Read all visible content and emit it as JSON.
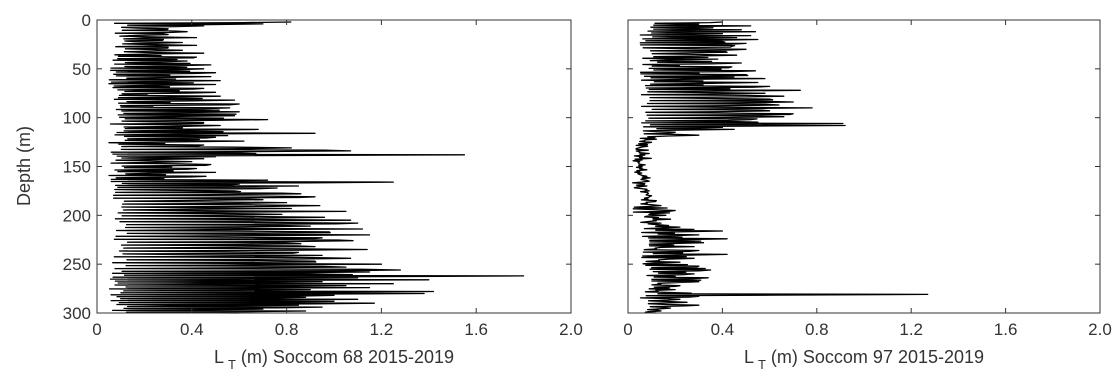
{
  "chart_data": [
    {
      "type": "line",
      "title": "",
      "xlabel_main": "L",
      "xlabel_sub": "T",
      "xlabel_rest": " (m) Soccom 68 2015-2019",
      "ylabel": "Depth (m)",
      "xlim": [
        0,
        2.0
      ],
      "ylim": [
        0,
        300
      ],
      "y_reversed": true,
      "grid": false,
      "xticks": [
        "0",
        "0.4",
        "0.8",
        "1.2",
        "1.6",
        "2.0"
      ],
      "yticks": [
        "0",
        "50",
        "100",
        "150",
        "200",
        "250",
        "300"
      ],
      "color": "#000000",
      "series": [
        {
          "depth": [
            2,
            4,
            6,
            9,
            12,
            15,
            18,
            20,
            23,
            26,
            28,
            31,
            34,
            38,
            42,
            46,
            50,
            54,
            58,
            62,
            66,
            70,
            74,
            78,
            82,
            86,
            90,
            94,
            98,
            102,
            105,
            108,
            112,
            116,
            120,
            124,
            128,
            131,
            134,
            136,
            138,
            140,
            142,
            145,
            148,
            152,
            156,
            160,
            164,
            166,
            168,
            170,
            172,
            175,
            178,
            181,
            184,
            187,
            190,
            193,
            196,
            199,
            202,
            205,
            208,
            211,
            214,
            217,
            220,
            223,
            226,
            229,
            232,
            235,
            238,
            241,
            244,
            247,
            250,
            253,
            256,
            258,
            260,
            262,
            264,
            266,
            268,
            270,
            272,
            274,
            276,
            278,
            280,
            282,
            284,
            286,
            288,
            290,
            292,
            294,
            296,
            298,
            300
          ],
          "values": [
            0.82,
            0.7,
            0.45,
            0.3,
            0.38,
            0.3,
            0.42,
            0.28,
            0.36,
            0.42,
            0.3,
            0.36,
            0.45,
            0.42,
            0.38,
            0.48,
            0.45,
            0.5,
            0.48,
            0.52,
            0.5,
            0.45,
            0.5,
            0.52,
            0.58,
            0.6,
            0.56,
            0.6,
            0.58,
            0.72,
            0.45,
            0.52,
            0.68,
            0.92,
            0.5,
            0.62,
            0.45,
            0.82,
            1.07,
            0.58,
            1.55,
            0.5,
            0.45,
            0.4,
            0.48,
            0.42,
            0.5,
            0.46,
            0.72,
            1.25,
            0.6,
            0.85,
            0.76,
            0.58,
            0.86,
            0.92,
            0.7,
            0.8,
            0.94,
            0.82,
            1.05,
            0.78,
            0.96,
            1.07,
            1.1,
            0.9,
            1.12,
            0.98,
            1.15,
            0.95,
            1.08,
            0.86,
            0.92,
            1.14,
            0.85,
            0.95,
            1.07,
            0.92,
            1.2,
            1.05,
            1.28,
            1.15,
            0.9,
            1.8,
            1.1,
            1.4,
            0.95,
            1.25,
            1.05,
            1.15,
            0.9,
            1.42,
            1.38,
            1.0,
            0.88,
            1.1,
            1.0,
            1.17,
            0.85,
            0.95,
            0.7,
            0.88,
            0.6
          ]
        }
      ]
    },
    {
      "type": "line",
      "title": "",
      "xlabel_main": "L",
      "xlabel_sub": "T",
      "xlabel_rest": " (m) Soccom 97 2015-2019",
      "ylabel": "",
      "xlim": [
        0,
        2.0
      ],
      "ylim": [
        0,
        300
      ],
      "y_reversed": true,
      "grid": false,
      "xticks": [
        "0",
        "0.4",
        "0.8",
        "1.2",
        "1.6",
        "2.0"
      ],
      "yticks": [
        "",
        "",
        "",
        "",
        "",
        "",
        ""
      ],
      "color": "#000000",
      "series": [
        {
          "depth": [
            2,
            4,
            6,
            8,
            10,
            12,
            14,
            16,
            18,
            20,
            22,
            24,
            27,
            30,
            33,
            36,
            40,
            44,
            48,
            52,
            56,
            60,
            64,
            68,
            72,
            75,
            78,
            81,
            84,
            87,
            90,
            93,
            96,
            99,
            102,
            104,
            106,
            108,
            110,
            112,
            115,
            118,
            122,
            126,
            130,
            135,
            140,
            145,
            150,
            155,
            160,
            165,
            170,
            175,
            180,
            185,
            190,
            195,
            200,
            204,
            208,
            212,
            216,
            220,
            224,
            228,
            232,
            236,
            240,
            244,
            248,
            252,
            256,
            260,
            264,
            268,
            272,
            276,
            279,
            281,
            283,
            286,
            289,
            292,
            295,
            298,
            300
          ],
          "values": [
            0.4,
            0.3,
            0.52,
            0.36,
            0.48,
            0.54,
            0.4,
            0.52,
            0.46,
            0.55,
            0.4,
            0.5,
            0.44,
            0.5,
            0.42,
            0.46,
            0.38,
            0.48,
            0.44,
            0.54,
            0.5,
            0.58,
            0.55,
            0.6,
            0.73,
            0.58,
            0.66,
            0.6,
            0.7,
            0.64,
            0.78,
            0.6,
            0.7,
            0.66,
            0.52,
            0.46,
            0.91,
            0.92,
            0.4,
            0.45,
            0.2,
            0.3,
            0.12,
            0.08,
            0.06,
            0.05,
            0.06,
            0.05,
            0.06,
            0.05,
            0.08,
            0.09,
            0.08,
            0.09,
            0.1,
            0.12,
            0.14,
            0.2,
            0.16,
            0.18,
            0.14,
            0.22,
            0.4,
            0.3,
            0.42,
            0.32,
            0.28,
            0.3,
            0.42,
            0.28,
            0.22,
            0.3,
            0.35,
            0.28,
            0.34,
            0.3,
            0.22,
            0.2,
            0.18,
            1.27,
            0.3,
            0.22,
            0.25,
            0.3,
            0.18,
            0.14,
            0.12
          ]
        }
      ]
    }
  ]
}
